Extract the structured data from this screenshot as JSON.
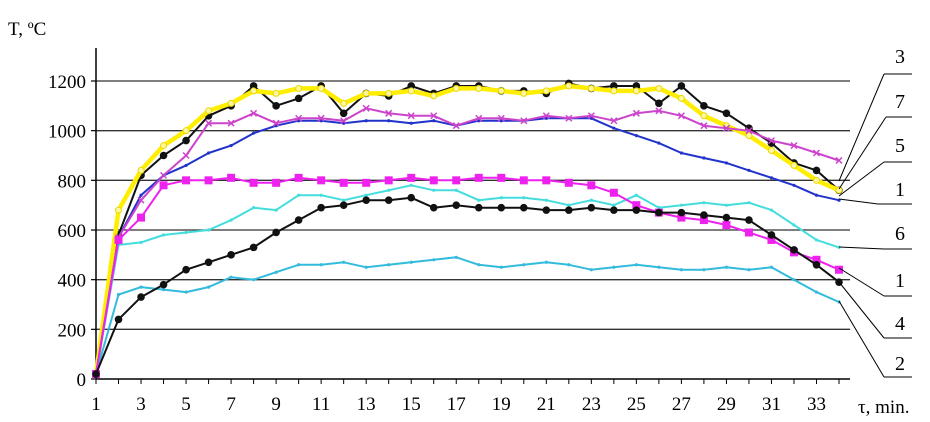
{
  "chart_data": {
    "type": "line",
    "ylabel": "T, ºC",
    "xlabel": "τ, min.",
    "xlim": [
      1,
      34
    ],
    "ylim": [
      0,
      1300
    ],
    "x_ticks": [
      1,
      3,
      5,
      7,
      9,
      11,
      13,
      15,
      17,
      19,
      21,
      23,
      25,
      27,
      29,
      31,
      33
    ],
    "y_ticks": [
      0,
      200,
      400,
      600,
      800,
      1000,
      1200
    ],
    "grid": "horizontal",
    "curve_labels": [
      "3",
      "7",
      "5",
      "1",
      "6",
      "1",
      "4",
      "2"
    ],
    "series": [
      {
        "label": "3",
        "color": "#ffee00",
        "marker": "circle-white",
        "x": [
          1,
          2,
          3,
          4,
          5,
          6,
          7,
          8,
          9,
          10,
          11,
          12,
          13,
          14,
          15,
          16,
          17,
          18,
          19,
          20,
          21,
          22,
          23,
          24,
          25,
          26,
          27,
          28,
          29,
          30,
          31,
          32,
          33,
          34
        ],
        "values": [
          20,
          680,
          840,
          940,
          1000,
          1080,
          1110,
          1160,
          1150,
          1170,
          1170,
          1110,
          1150,
          1150,
          1160,
          1140,
          1170,
          1170,
          1160,
          1150,
          1160,
          1180,
          1170,
          1160,
          1160,
          1170,
          1130,
          1060,
          1020,
          980,
          920,
          860,
          800,
          760
        ]
      },
      {
        "label": "7",
        "color": "#111111",
        "marker": "dot",
        "x": [
          1,
          2,
          3,
          4,
          5,
          6,
          7,
          8,
          9,
          10,
          11,
          12,
          13,
          14,
          15,
          16,
          17,
          18,
          19,
          20,
          21,
          22,
          23,
          24,
          25,
          26,
          27,
          28,
          29,
          30,
          31,
          32,
          33,
          34
        ],
        "values": [
          20,
          580,
          820,
          900,
          960,
          1060,
          1100,
          1180,
          1100,
          1130,
          1180,
          1070,
          1150,
          1140,
          1180,
          1150,
          1180,
          1180,
          1160,
          1160,
          1150,
          1190,
          1170,
          1180,
          1180,
          1110,
          1180,
          1100,
          1070,
          1010,
          950,
          870,
          840,
          760
        ]
      },
      {
        "label": "5",
        "color": "#cc44cc",
        "marker": "cross",
        "x": [
          1,
          2,
          3,
          4,
          5,
          6,
          7,
          8,
          9,
          10,
          11,
          12,
          13,
          14,
          15,
          16,
          17,
          18,
          19,
          20,
          21,
          22,
          23,
          24,
          25,
          26,
          27,
          28,
          29,
          30,
          31,
          32,
          33,
          34
        ],
        "values": [
          20,
          570,
          720,
          820,
          900,
          1030,
          1030,
          1070,
          1030,
          1050,
          1050,
          1040,
          1090,
          1070,
          1060,
          1060,
          1020,
          1050,
          1050,
          1040,
          1060,
          1050,
          1060,
          1040,
          1070,
          1080,
          1060,
          1020,
          1010,
          1000,
          960,
          940,
          910,
          880
        ]
      },
      {
        "label": "1",
        "color": "#2233cc",
        "marker": "none",
        "x": [
          1,
          2,
          3,
          4,
          5,
          6,
          7,
          8,
          9,
          10,
          11,
          12,
          13,
          14,
          15,
          16,
          17,
          18,
          19,
          20,
          21,
          22,
          23,
          24,
          25,
          26,
          27,
          28,
          29,
          30,
          31,
          32,
          33,
          34
        ],
        "values": [
          20,
          570,
          740,
          820,
          860,
          910,
          940,
          990,
          1020,
          1040,
          1040,
          1030,
          1040,
          1040,
          1030,
          1040,
          1020,
          1040,
          1040,
          1040,
          1050,
          1050,
          1050,
          1010,
          980,
          950,
          910,
          890,
          870,
          840,
          810,
          780,
          740,
          720
        ]
      },
      {
        "label": "6",
        "color": "#ee22ee",
        "marker": "square",
        "x": [
          1,
          2,
          3,
          4,
          5,
          6,
          7,
          8,
          9,
          10,
          11,
          12,
          13,
          14,
          15,
          16,
          17,
          18,
          19,
          20,
          21,
          22,
          23,
          24,
          25,
          26,
          27,
          28,
          29,
          30,
          31,
          32,
          33,
          34
        ],
        "values": [
          20,
          560,
          650,
          780,
          800,
          800,
          810,
          790,
          790,
          810,
          800,
          790,
          790,
          800,
          810,
          800,
          800,
          810,
          810,
          800,
          800,
          790,
          780,
          750,
          700,
          670,
          650,
          640,
          620,
          590,
          560,
          510,
          480,
          440
        ]
      },
      {
        "label": "1",
        "color": "#44dddd",
        "marker": "none",
        "x": [
          1,
          2,
          3,
          4,
          5,
          6,
          7,
          8,
          9,
          10,
          11,
          12,
          13,
          14,
          15,
          16,
          17,
          18,
          19,
          20,
          21,
          22,
          23,
          24,
          25,
          26,
          27,
          28,
          29,
          30,
          31,
          32,
          33,
          34
        ],
        "values": [
          20,
          540,
          550,
          580,
          590,
          600,
          640,
          690,
          680,
          740,
          740,
          720,
          740,
          760,
          780,
          760,
          760,
          720,
          730,
          730,
          720,
          700,
          720,
          700,
          740,
          690,
          700,
          710,
          700,
          710,
          680,
          620,
          560,
          530
        ]
      },
      {
        "label": "4",
        "color": "#111111",
        "marker": "dot",
        "x": [
          1,
          2,
          3,
          4,
          5,
          6,
          7,
          8,
          9,
          10,
          11,
          12,
          13,
          14,
          15,
          16,
          17,
          18,
          19,
          20,
          21,
          22,
          23,
          24,
          25,
          26,
          27,
          28,
          29,
          30,
          31,
          32,
          33,
          34
        ],
        "values": [
          20,
          240,
          330,
          380,
          440,
          470,
          500,
          530,
          590,
          640,
          690,
          700,
          720,
          720,
          730,
          690,
          700,
          690,
          690,
          690,
          680,
          680,
          690,
          680,
          680,
          670,
          670,
          660,
          650,
          640,
          580,
          520,
          460,
          390
        ]
      },
      {
        "label": "2",
        "color": "#33bbdd",
        "marker": "none",
        "x": [
          1,
          2,
          3,
          4,
          5,
          6,
          7,
          8,
          9,
          10,
          11,
          12,
          13,
          14,
          15,
          16,
          17,
          18,
          19,
          20,
          21,
          22,
          23,
          24,
          25,
          26,
          27,
          28,
          29,
          30,
          31,
          32,
          33,
          34
        ],
        "values": [
          20,
          340,
          370,
          360,
          350,
          370,
          410,
          400,
          430,
          460,
          460,
          470,
          450,
          460,
          470,
          480,
          490,
          460,
          450,
          460,
          470,
          460,
          440,
          450,
          460,
          450,
          440,
          440,
          450,
          440,
          450,
          400,
          350,
          310
        ]
      }
    ]
  }
}
